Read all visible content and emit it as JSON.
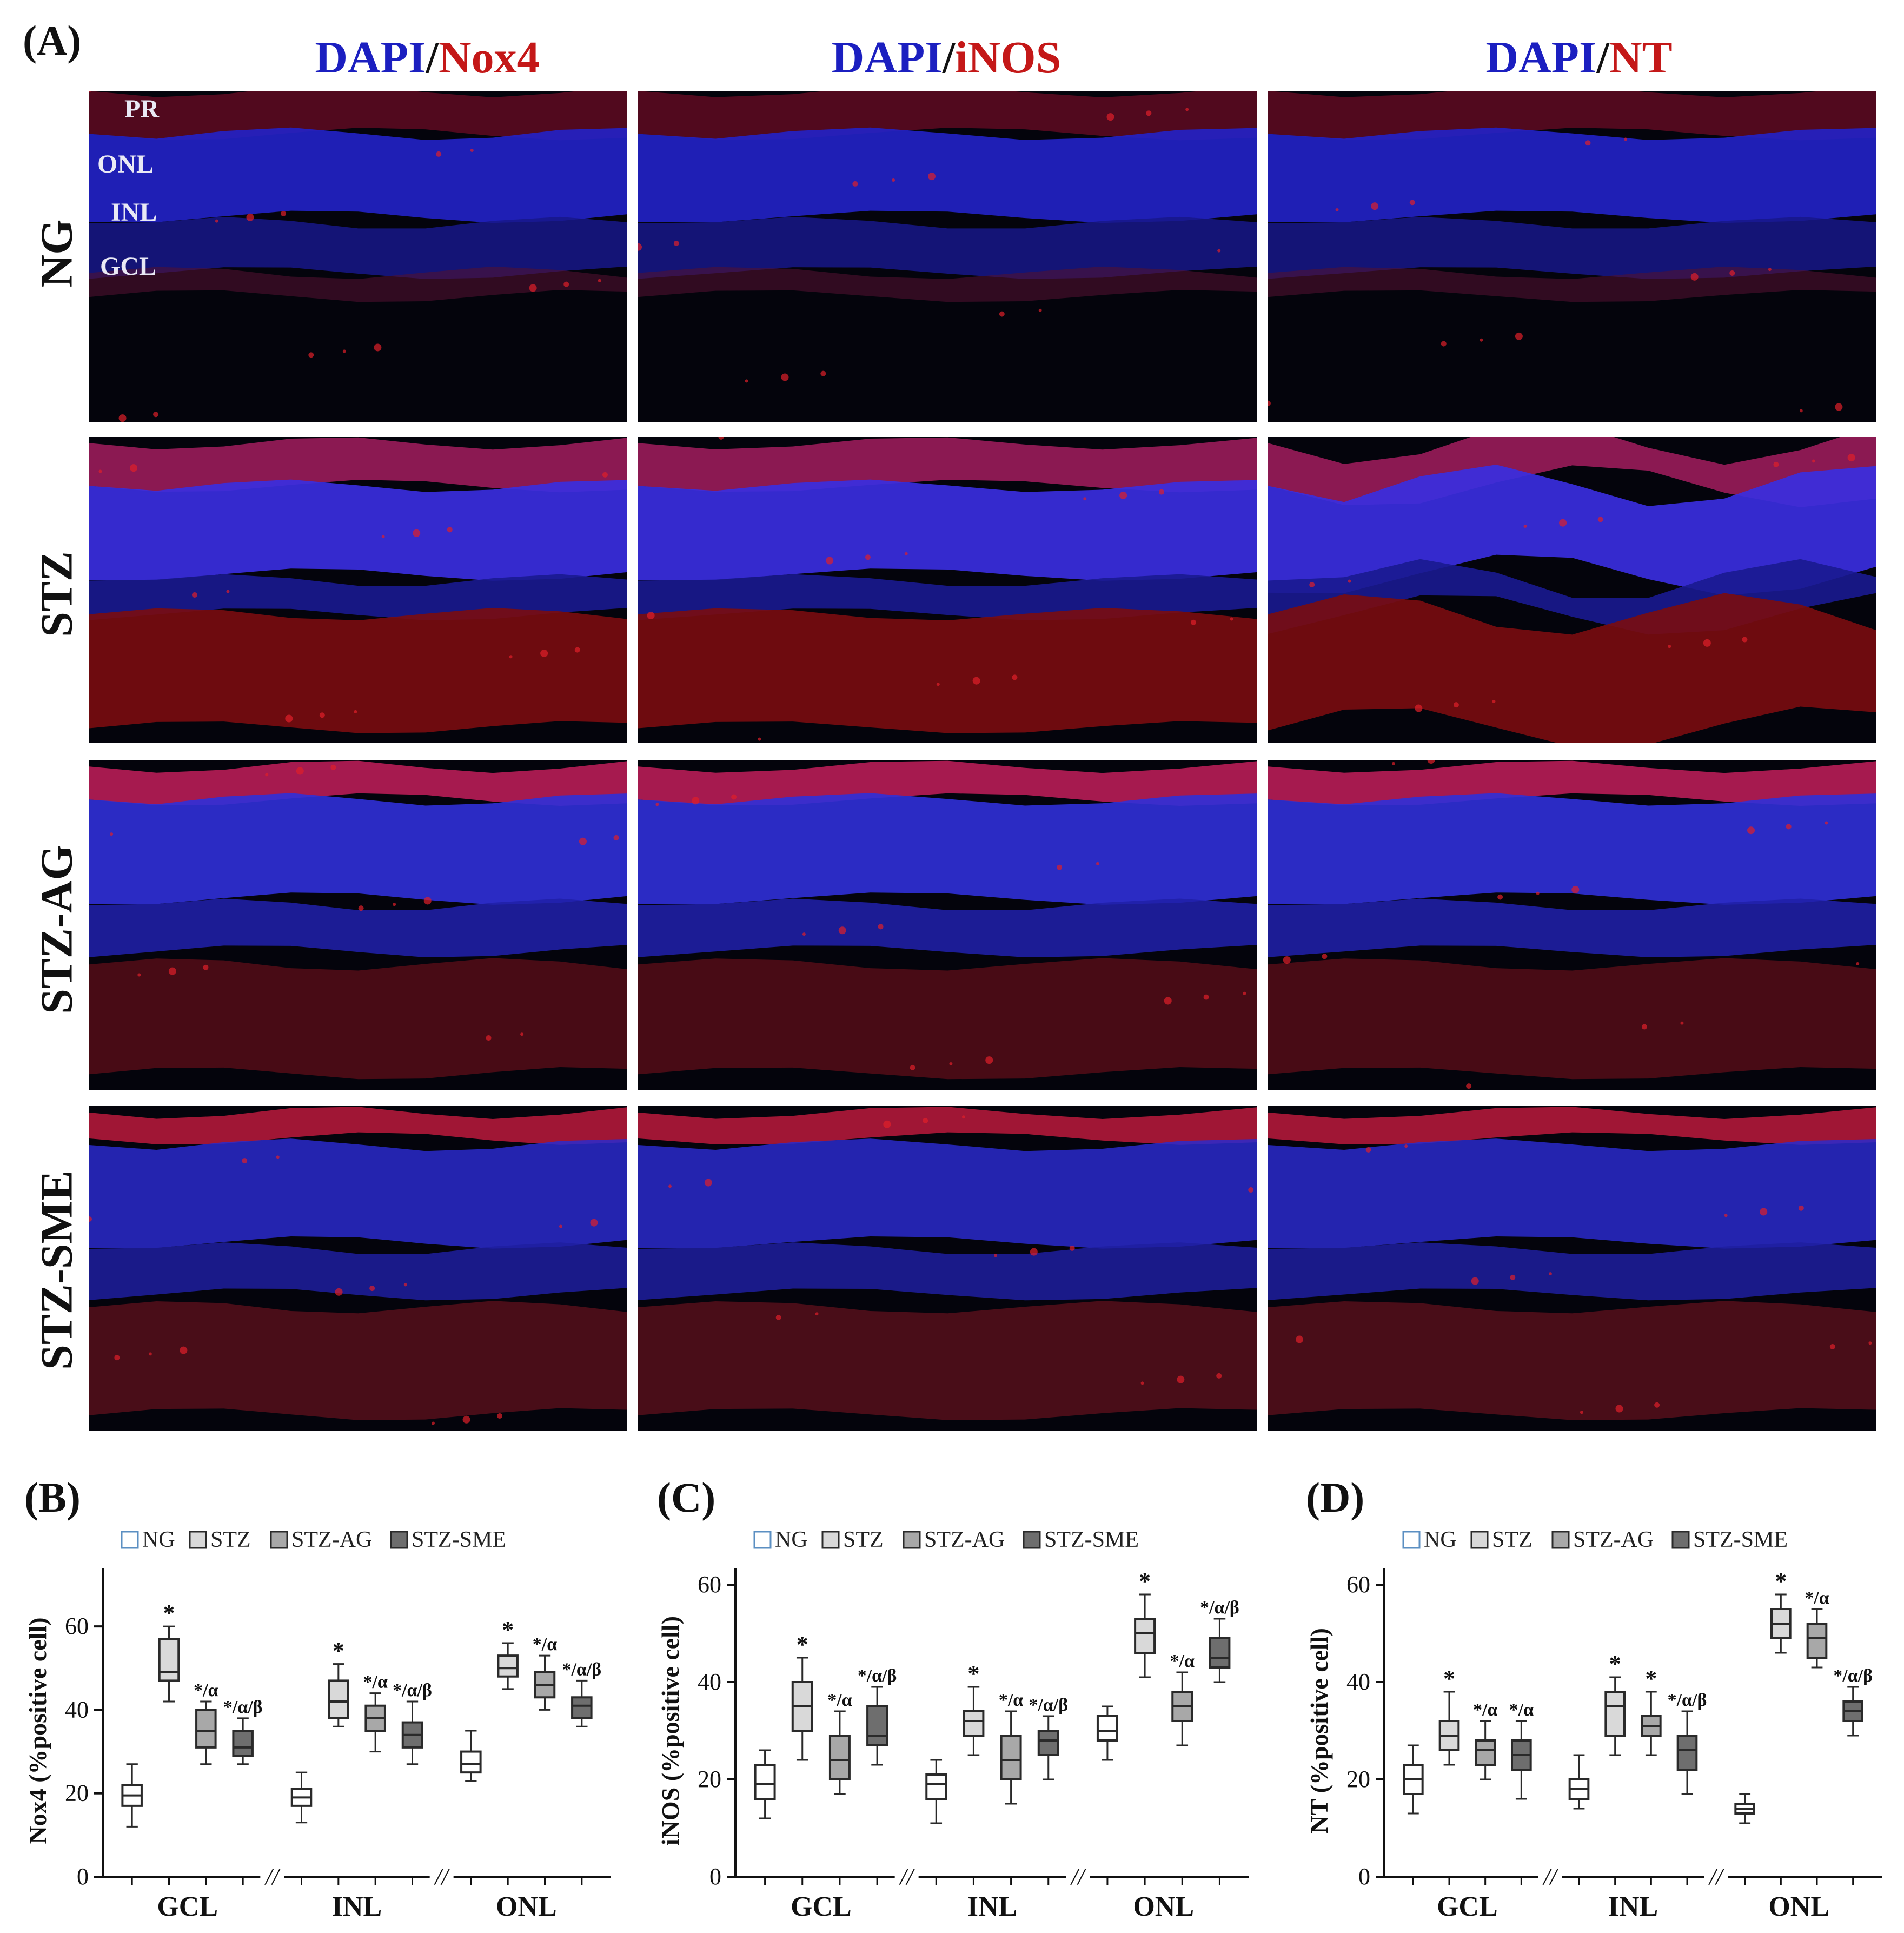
{
  "panels": {
    "A": "(A)",
    "B": "(B)",
    "C": "(C)",
    "D": "(D)"
  },
  "stain_columns": [
    {
      "dapi": "DAPI",
      "sep": "/",
      "marker": "Nox4"
    },
    {
      "dapi": "DAPI",
      "sep": "/",
      "marker": "iNOS"
    },
    {
      "dapi": "DAPI",
      "sep": "/",
      "marker": "NT"
    }
  ],
  "groups": [
    "NG",
    "STZ",
    "STZ-AG",
    "STZ-SME"
  ],
  "retina_layers": [
    "PR",
    "ONL",
    "INL",
    "GCL"
  ],
  "colors": {
    "dapi": "#1b1fc0",
    "marker": "#c41818",
    "NG": "#ffffff",
    "STZ": "#d9d9d9",
    "STZ-AG": "#a8a8a8",
    "STZ-SME": "#6e6e6e",
    "NG_edge": "#5b8fc2",
    "box_edge": "#2a2a2a"
  },
  "chart_data": [
    {
      "type": "box",
      "panel": "(B)",
      "ylabel": "Nox4 (%positive cell)",
      "ylim": [
        0,
        70
      ],
      "yticks": [
        0,
        20,
        40,
        60
      ],
      "categories": [
        "GCL",
        "INL",
        "ONL"
      ],
      "axis_break": "//",
      "legend": [
        "NG",
        "STZ",
        "STZ-AG",
        "STZ-SME"
      ],
      "series": [
        {
          "name": "NG",
          "boxes": [
            [
              12,
              17,
              19.5,
              22,
              27
            ],
            [
              13,
              17,
              19,
              21,
              25
            ],
            [
              23,
              25,
              27,
              30,
              35
            ]
          ],
          "marks": [
            "",
            "",
            ""
          ]
        },
        {
          "name": "STZ",
          "boxes": [
            [
              42,
              47,
              49,
              57,
              60
            ],
            [
              36,
              38,
              42,
              47,
              51
            ],
            [
              45,
              48,
              50,
              53,
              56
            ]
          ],
          "marks": [
            "*",
            "*",
            "*"
          ]
        },
        {
          "name": "STZ-AG",
          "boxes": [
            [
              27,
              31,
              35,
              40,
              42
            ],
            [
              30,
              35,
              38,
              41,
              44
            ],
            [
              40,
              43,
              46,
              49,
              53
            ]
          ],
          "marks": [
            "*/α",
            "*/α",
            "*/α"
          ]
        },
        {
          "name": "STZ-SME",
          "boxes": [
            [
              27,
              29,
              31,
              35,
              38
            ],
            [
              27,
              31,
              34,
              37,
              42
            ],
            [
              36,
              38,
              41,
              43,
              47
            ]
          ],
          "marks": [
            "*/α/β",
            "*/α/β",
            "*/α/β"
          ]
        }
      ]
    },
    {
      "type": "box",
      "panel": "(C)",
      "ylabel": "iNOS (%positive cell)",
      "ylim": [
        0,
        60
      ],
      "yticks": [
        0,
        20,
        40,
        60
      ],
      "categories": [
        "GCL",
        "INL",
        "ONL"
      ],
      "axis_break": "//",
      "legend": [
        "NG",
        "STZ",
        "STZ-AG",
        "STZ-SME"
      ],
      "series": [
        {
          "name": "NG",
          "boxes": [
            [
              12,
              16,
              19,
              23,
              26
            ],
            [
              11,
              16,
              19,
              21,
              24
            ],
            [
              24,
              28,
              30,
              33,
              35
            ]
          ],
          "marks": [
            "",
            "",
            ""
          ]
        },
        {
          "name": "STZ",
          "boxes": [
            [
              24,
              30,
              35,
              40,
              45
            ],
            [
              25,
              29,
              32,
              34,
              39
            ],
            [
              41,
              46,
              50,
              53,
              58
            ]
          ],
          "marks": [
            "*",
            "*",
            "*"
          ]
        },
        {
          "name": "STZ-AG",
          "boxes": [
            [
              17,
              20,
              24,
              29,
              34
            ],
            [
              15,
              20,
              24,
              29,
              34
            ],
            [
              27,
              32,
              35,
              38,
              42
            ]
          ],
          "marks": [
            "*/α",
            "*/α",
            "*/α"
          ]
        },
        {
          "name": "STZ-SME",
          "boxes": [
            [
              23,
              27,
              29,
              35,
              39
            ],
            [
              20,
              25,
              28,
              30,
              33
            ],
            [
              40,
              43,
              45,
              49,
              53
            ]
          ],
          "marks": [
            "*/α/β",
            "*/α/β",
            "*/α/β"
          ]
        }
      ]
    },
    {
      "type": "box",
      "panel": "(D)",
      "ylabel": "NT (%positive cell)",
      "ylim": [
        0,
        60
      ],
      "yticks": [
        0,
        20,
        40,
        60
      ],
      "categories": [
        "GCL",
        "INL",
        "ONL"
      ],
      "axis_break": "//",
      "legend": [
        "NG",
        "STZ",
        "STZ-AG",
        "STZ-SME"
      ],
      "series": [
        {
          "name": "NG",
          "boxes": [
            [
              13,
              17,
              20,
              23,
              27
            ],
            [
              14,
              16,
              18,
              20,
              25
            ],
            [
              11,
              13,
              14,
              15,
              17
            ]
          ],
          "marks": [
            "",
            "",
            ""
          ]
        },
        {
          "name": "STZ",
          "boxes": [
            [
              23,
              26,
              29,
              32,
              38
            ],
            [
              25,
              29,
              35,
              38,
              41
            ],
            [
              46,
              49,
              52,
              55,
              58
            ]
          ],
          "marks": [
            "*",
            "*",
            "*"
          ]
        },
        {
          "name": "STZ-AG",
          "boxes": [
            [
              20,
              23,
              26,
              28,
              32
            ],
            [
              25,
              29,
              31,
              33,
              38
            ],
            [
              43,
              45,
              49,
              52,
              55
            ]
          ],
          "marks": [
            "*/α",
            "*",
            "*/α"
          ]
        },
        {
          "name": "STZ-SME",
          "boxes": [
            [
              16,
              22,
              25,
              28,
              32
            ],
            [
              17,
              22,
              26,
              29,
              34
            ],
            [
              29,
              32,
              34,
              36,
              39
            ]
          ],
          "marks": [
            "*/α",
            "*/α/β",
            "*/α/β"
          ]
        }
      ]
    }
  ]
}
